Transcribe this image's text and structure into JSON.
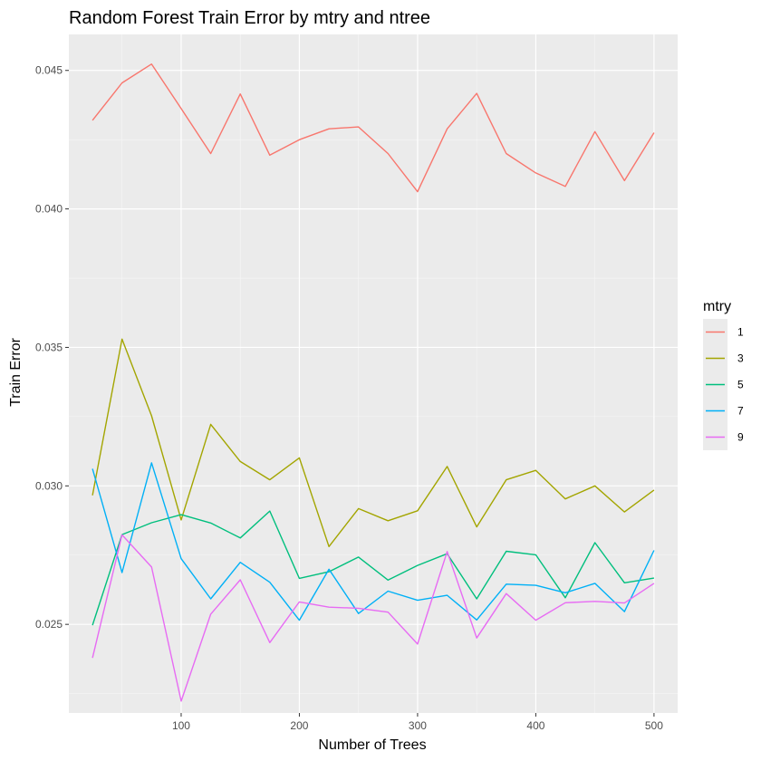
{
  "chart_data": {
    "type": "line",
    "title": "Random Forest Train Error by mtry and ntree",
    "xlabel": "Number of Trees",
    "ylabel": "Train Error",
    "xlim": [
      5,
      520
    ],
    "ylim": [
      0.0218,
      0.0463
    ],
    "x_ticks": [
      100,
      200,
      300,
      400,
      500
    ],
    "y_ticks": [
      0.025,
      0.03,
      0.035,
      0.04,
      0.045
    ],
    "y_tick_labels": [
      "0.025",
      "0.030",
      "0.035",
      "0.040",
      "0.045"
    ],
    "grid": true,
    "legend_position": "right",
    "legend_title": "mtry",
    "x": [
      25,
      50,
      75,
      100,
      125,
      150,
      175,
      200,
      225,
      250,
      275,
      300,
      325,
      350,
      375,
      400,
      425,
      450,
      475,
      500
    ],
    "series": [
      {
        "name": "1",
        "color": "#F8766D",
        "values": [
          0.0432,
          0.04455,
          0.04523,
          0.04362,
          0.042,
          0.04415,
          0.04194,
          0.0425,
          0.04289,
          0.04296,
          0.042,
          0.04062,
          0.04289,
          0.04417,
          0.042,
          0.0413,
          0.04081,
          0.04279,
          0.04102,
          0.04275
        ]
      },
      {
        "name": "3",
        "color": "#A3A500",
        "values": [
          0.02966,
          0.0353,
          0.03253,
          0.02877,
          0.03222,
          0.03088,
          0.03022,
          0.03101,
          0.02781,
          0.02918,
          0.02874,
          0.0291,
          0.0307,
          0.02852,
          0.03022,
          0.03056,
          0.02953,
          0.03,
          0.02906,
          0.02985
        ]
      },
      {
        "name": "5",
        "color": "#00BF7D",
        "values": [
          0.02497,
          0.02824,
          0.02867,
          0.02896,
          0.02866,
          0.02812,
          0.02909,
          0.02666,
          0.0269,
          0.02743,
          0.0266,
          0.02713,
          0.02755,
          0.02592,
          0.02764,
          0.02751,
          0.02596,
          0.02795,
          0.0265,
          0.02667
        ]
      },
      {
        "name": "7",
        "color": "#00B0F6",
        "values": [
          0.03062,
          0.02687,
          0.03083,
          0.02737,
          0.02592,
          0.02724,
          0.02652,
          0.02515,
          0.02699,
          0.02539,
          0.0262,
          0.02587,
          0.02605,
          0.02516,
          0.02645,
          0.02641,
          0.02614,
          0.02648,
          0.02546,
          0.02767
        ]
      },
      {
        "name": "9",
        "color": "#E76BF3",
        "values": [
          0.02379,
          0.02823,
          0.02707,
          0.02223,
          0.02537,
          0.02661,
          0.02434,
          0.02581,
          0.02562,
          0.02558,
          0.02544,
          0.02429,
          0.02763,
          0.02451,
          0.02611,
          0.02515,
          0.02578,
          0.02583,
          0.02577,
          0.02648
        ]
      }
    ]
  },
  "colors": {
    "panel_background": "#EBEBEB",
    "grid_major": "#FFFFFF",
    "grid_minor": "#F7F7F7",
    "legend_key_background": "#EBEBEB",
    "tick_mark": "#333333"
  }
}
